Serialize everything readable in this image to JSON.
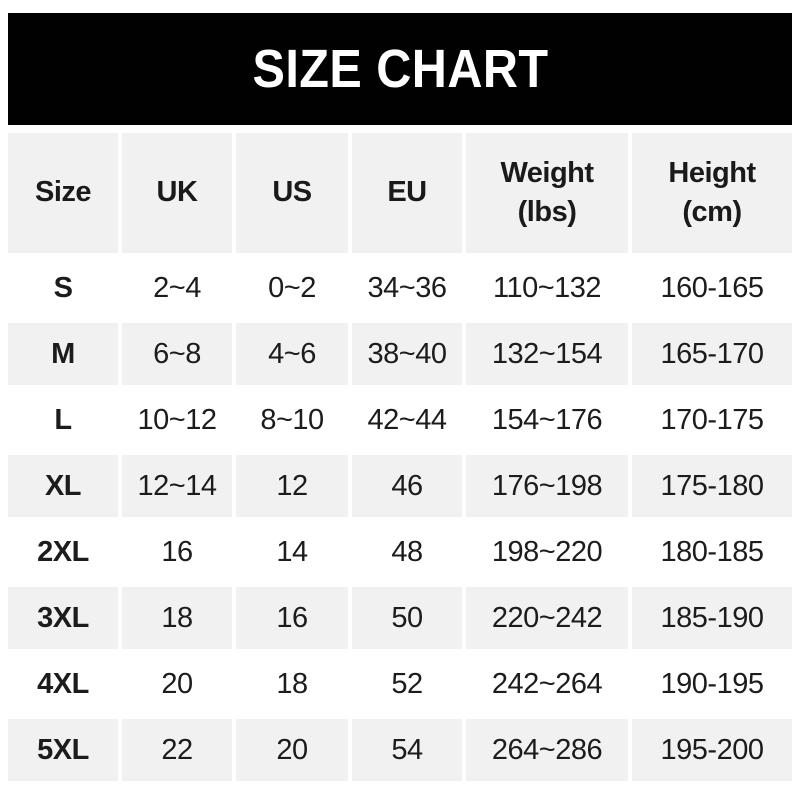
{
  "banner": {
    "title": "SIZE CHART",
    "bg_color": "#010101",
    "text_color": "#ffffff"
  },
  "colors": {
    "row_alt_bg": "#f1f1f2",
    "row_bg": "#ffffff",
    "text": "#1c1c1c"
  },
  "chart_data": {
    "type": "table",
    "title": "SIZE CHART",
    "columns": [
      "Size",
      "UK",
      "US",
      "EU",
      "Weight\n(lbs)",
      "Height\n(cm)"
    ],
    "rows": [
      [
        "S",
        "2~4",
        "0~2",
        "34~36",
        "110~132",
        "160-165"
      ],
      [
        "M",
        "6~8",
        "4~6",
        "38~40",
        "132~154",
        "165-170"
      ],
      [
        "L",
        "10~12",
        "8~10",
        "42~44",
        "154~176",
        "170-175"
      ],
      [
        "XL",
        "12~14",
        "12",
        "46",
        "176~198",
        "175-180"
      ],
      [
        "2XL",
        "16",
        "14",
        "48",
        "198~220",
        "180-185"
      ],
      [
        "3XL",
        "18",
        "16",
        "50",
        "220~242",
        "185-190"
      ],
      [
        "4XL",
        "20",
        "18",
        "52",
        "242~264",
        "190-195"
      ],
      [
        "5XL",
        "22",
        "20",
        "54",
        "264~286",
        "195-200"
      ]
    ]
  }
}
